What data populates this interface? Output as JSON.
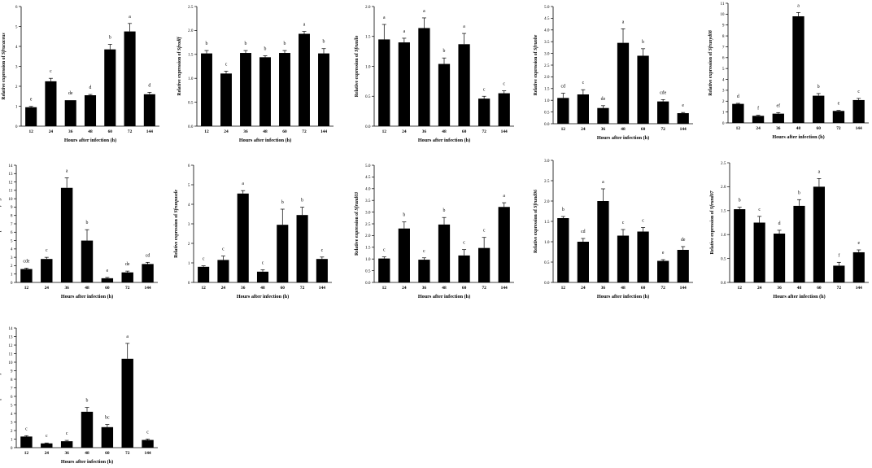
{
  "x_categories": [
    "12",
    "24",
    "36",
    "48",
    "60",
    "72",
    "144"
  ],
  "x_axis_label": "Hours after infection (h)",
  "chart_data": [
    {
      "type": "bar",
      "ylabel_prefix": "Relative expression of ",
      "gene": "Sfrucaceus",
      "ylim": [
        0,
        6
      ],
      "yticks": [
        0,
        1,
        2,
        3,
        4,
        5,
        6
      ],
      "categories": [
        "12",
        "24",
        "36",
        "48",
        "60",
        "72",
        "144"
      ],
      "values": [
        0.95,
        2.25,
        1.3,
        1.55,
        3.85,
        4.75,
        1.6
      ],
      "errors": [
        0.04,
        0.15,
        0.0,
        0.04,
        0.25,
        0.4,
        0.1
      ],
      "labels": [
        "e",
        "c",
        "de",
        "d",
        "b",
        "a",
        "d"
      ],
      "xlabel": "Hours after infection (h)"
    },
    {
      "type": "bar",
      "ylabel_prefix": "Relative expression of ",
      "gene": "Sfrodlf",
      "ylim": [
        0,
        2.5
      ],
      "yticks": [
        "0.0",
        "0.5",
        "1.0",
        "1.5",
        "2.0",
        "2.5"
      ],
      "categories": [
        "12",
        "24",
        "36",
        "48",
        "60",
        "72",
        "144"
      ],
      "values": [
        1.52,
        1.1,
        1.53,
        1.44,
        1.53,
        1.93,
        1.52
      ],
      "errors": [
        0.06,
        0.05,
        0.05,
        0.03,
        0.05,
        0.05,
        0.1
      ],
      "labels": [
        "b",
        "c",
        "b",
        "b",
        "b",
        "a",
        "b"
      ],
      "xlabel": "Hours after infection (h)"
    },
    {
      "type": "bar",
      "ylabel_prefix": "Relative expression of ",
      "gene": "Sfrunilo",
      "ylim": [
        0,
        2.0
      ],
      "yticks": [
        "0.0",
        "0.5",
        "1.0",
        "1.5",
        "2.0"
      ],
      "categories": [
        "12",
        "24",
        "36",
        "48",
        "60",
        "72",
        "144"
      ],
      "values": [
        1.45,
        1.4,
        1.64,
        1.04,
        1.37,
        0.46,
        0.55
      ],
      "errors": [
        0.25,
        0.07,
        0.17,
        0.1,
        0.18,
        0.04,
        0.04
      ],
      "labels": [
        "a",
        "a",
        "a",
        "b",
        "a",
        "c",
        "c"
      ],
      "xlabel": "Hours after infection (h)"
    },
    {
      "type": "bar",
      "ylabel_prefix": "Relative expression of ",
      "gene": "Sfrunbe",
      "ylim": [
        0,
        5.0
      ],
      "yticks": [
        "0.0",
        "0.5",
        "1.0",
        "1.5",
        "2.0",
        "2.5",
        "3.0",
        "3.5",
        "4.0",
        "4.5",
        "5.0"
      ],
      "categories": [
        "12",
        "24",
        "36",
        "48",
        "60",
        "72",
        "144"
      ],
      "values": [
        1.1,
        1.25,
        0.67,
        3.45,
        2.9,
        0.95,
        0.45
      ],
      "errors": [
        0.2,
        0.2,
        0.1,
        0.6,
        0.3,
        0.08,
        0.03
      ],
      "labels": [
        "cd",
        "c",
        "de",
        "a",
        "b",
        "cde",
        "e"
      ],
      "xlabel": "Hours after infection (h)"
    },
    {
      "type": "bar",
      "ylabel_prefix": "Relative expression of ",
      "gene": "Sfrunyd08",
      "ylim": [
        0,
        11
      ],
      "yticks": [
        0,
        1,
        2,
        3,
        4,
        5,
        6,
        7,
        8,
        9,
        10,
        11
      ],
      "categories": [
        "12",
        "24",
        "36",
        "48",
        "60",
        "72",
        "144"
      ],
      "values": [
        1.75,
        0.65,
        0.85,
        9.8,
        2.5,
        1.1,
        2.1
      ],
      "errors": [
        0.05,
        0.05,
        0.1,
        0.35,
        0.2,
        0.05,
        0.15
      ],
      "labels": [
        "d",
        "f",
        "ef",
        "a",
        "b",
        "e",
        "c"
      ],
      "xlabel": "Hours after infection (h)"
    },
    {
      "type": "bar",
      "ylabel_prefix": "Relative expression of ",
      "gene": "Sfrugell",
      "ylim": [
        0,
        14
      ],
      "yticks": [
        0,
        1,
        2,
        3,
        4,
        5,
        6,
        7,
        8,
        9,
        10,
        11,
        12,
        13,
        14
      ],
      "categories": [
        "12",
        "24",
        "36",
        "48",
        "60",
        "72",
        "144"
      ],
      "values": [
        1.6,
        2.8,
        11.3,
        5.0,
        0.5,
        1.2,
        2.2
      ],
      "errors": [
        0.1,
        0.2,
        1.2,
        1.3,
        0.1,
        0.15,
        0.2
      ],
      "labels": [
        "cde",
        "c",
        "a",
        "b",
        "e",
        "de",
        "cd"
      ],
      "xlabel": "Hours after infection (h)"
    },
    {
      "type": "bar",
      "ylabel_prefix": "Relative expression of ",
      "gene": "Sfrunpaszle",
      "ylim": [
        0,
        6
      ],
      "yticks": [
        0,
        1,
        2,
        3,
        4,
        5,
        6
      ],
      "categories": [
        "12",
        "24",
        "36",
        "48",
        "60",
        "72",
        "144"
      ],
      "values": [
        0.8,
        1.15,
        4.55,
        0.55,
        2.95,
        3.45,
        1.2
      ],
      "errors": [
        0.05,
        0.2,
        0.15,
        0.1,
        0.8,
        0.4,
        0.1
      ],
      "labels": [
        "c",
        "c",
        "a",
        "c",
        "b",
        "b",
        "c"
      ],
      "xlabel": "Hours after infection (h)"
    },
    {
      "type": "bar",
      "ylabel_prefix": "Relative expression of ",
      "gene": "Sfrund03",
      "ylim": [
        0,
        5.0
      ],
      "yticks": [
        "0.0",
        "0.5",
        "1.0",
        "1.5",
        "2.0",
        "2.5",
        "3.0",
        "3.5",
        "4.0",
        "4.5",
        "5.0"
      ],
      "categories": [
        "12",
        "24",
        "36",
        "48",
        "60",
        "72",
        "144"
      ],
      "values": [
        1.02,
        2.3,
        0.97,
        2.47,
        1.15,
        1.47,
        3.22
      ],
      "errors": [
        0.07,
        0.28,
        0.08,
        0.3,
        0.25,
        0.45,
        0.18
      ],
      "labels": [
        "c",
        "b",
        "c",
        "b",
        "c",
        "c",
        "a"
      ],
      "xlabel": "Hours after infection (h)"
    },
    {
      "type": "bar",
      "ylabel_prefix": "Relative expression of ",
      "gene": "Sfrund06",
      "ylim": [
        0,
        3.0
      ],
      "yticks": [
        "0.0",
        "0.5",
        "1.0",
        "1.5",
        "2.0",
        "2.5",
        "3.0"
      ],
      "categories": [
        "12",
        "24",
        "36",
        "48",
        "60",
        "72",
        "144"
      ],
      "values": [
        1.58,
        1.0,
        2.0,
        1.15,
        1.25,
        0.53,
        0.8
      ],
      "errors": [
        0.04,
        0.08,
        0.3,
        0.15,
        0.1,
        0.03,
        0.08
      ],
      "labels": [
        "b",
        "cd",
        "a",
        "c",
        "c",
        "e",
        "de"
      ],
      "xlabel": "Hours after infection (h)"
    },
    {
      "type": "bar",
      "ylabel_prefix": "Relative expression of ",
      "gene": "Sfrund07",
      "ylim": [
        0,
        2.5
      ],
      "yticks": [
        "0.0",
        "0.5",
        "1.0",
        "1.5",
        "2.0",
        "2.5"
      ],
      "categories": [
        "12",
        "24",
        "36",
        "48",
        "60",
        "72",
        "144"
      ],
      "values": [
        1.53,
        1.25,
        1.02,
        1.6,
        2.0,
        0.35,
        0.63
      ],
      "errors": [
        0.04,
        0.13,
        0.07,
        0.13,
        0.17,
        0.07,
        0.05
      ],
      "labels": [
        "b",
        "c",
        "d",
        "b",
        "a",
        "f",
        "e"
      ],
      "xlabel": "Hours after infection (h)"
    },
    {
      "type": "bar",
      "ylabel_prefix": "Relative expression of ",
      "gene": "Sfrund01bw",
      "ylim": [
        0,
        14
      ],
      "yticks": [
        0,
        1,
        2,
        3,
        4,
        5,
        6,
        7,
        8,
        9,
        10,
        11,
        12,
        13,
        14
      ],
      "categories": [
        "12",
        "24",
        "36",
        "48",
        "60",
        "72",
        "144"
      ],
      "values": [
        1.3,
        0.5,
        0.75,
        4.2,
        2.4,
        10.4,
        0.9
      ],
      "errors": [
        0.1,
        0.05,
        0.1,
        0.5,
        0.3,
        1.8,
        0.1
      ],
      "labels": [
        "c",
        "c",
        "c",
        "b",
        "bc",
        "a",
        "c"
      ],
      "xlabel": "Hours after infection (h)"
    }
  ]
}
